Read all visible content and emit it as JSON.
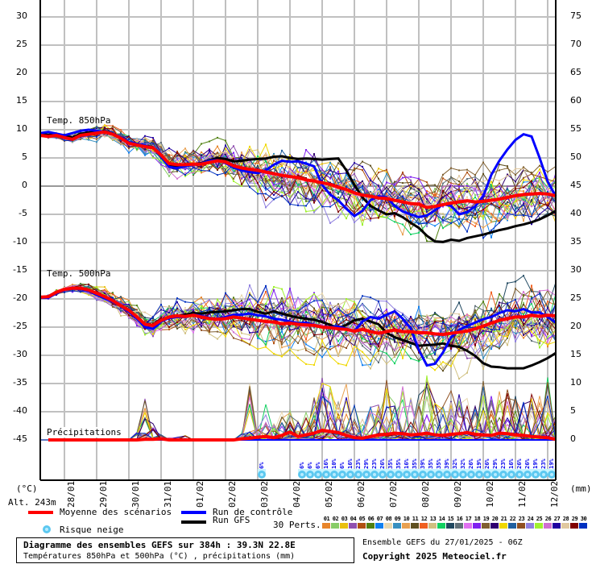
{
  "chart_data": {
    "type": "line",
    "title": "Diagramme des ensembles GEFS sur 384h : 39.3N 22.8E",
    "subtitle": "Températures 850hPa et 500hPa (°C) , précipitations (mm)",
    "run": "Ensemble GEFS du 27/01/2025 - 06Z",
    "altitude": "Alt. 243m",
    "left_axis": {
      "label": "(°C)",
      "ticks": [
        30,
        25,
        20,
        15,
        10,
        5,
        0,
        -5,
        -10,
        -15,
        -20,
        -25,
        -30,
        -35,
        -40,
        -45
      ],
      "range": [
        -45,
        30
      ]
    },
    "right_axis": {
      "label": "(mm)",
      "ticks": [
        75,
        70,
        65,
        60,
        55,
        50,
        45,
        40,
        35,
        30,
        25,
        20,
        15,
        10,
        5,
        0
      ],
      "range": [
        0,
        75
      ]
    },
    "x_dates": [
      "28/01",
      "29/01",
      "30/01",
      "31/01",
      "01/02",
      "02/02",
      "03/02",
      "04/02",
      "05/02",
      "06/02",
      "07/02",
      "08/02",
      "09/02",
      "10/02",
      "11/02",
      "12/02"
    ],
    "x_step_hours": 6,
    "horizon_hours": 384,
    "grid": true,
    "sections": [
      {
        "name": "Temp. 850hPa",
        "unit": "°C",
        "mean": [
          9,
          8.8,
          9,
          8.6,
          8.3,
          9,
          9.2,
          9.4,
          9.6,
          9.2,
          8.5,
          7.6,
          7.3,
          7,
          6.8,
          5.5,
          4,
          3.8,
          3.8,
          3.9,
          3.9,
          4.2,
          4.5,
          4.3,
          3.6,
          3.2,
          3,
          2.8,
          2.5,
          2.2,
          1.9,
          1.7,
          1.5,
          1.1,
          0.9,
          0.6,
          0.3,
          -0.2,
          -0.6,
          -1.2,
          -1.6,
          -1.8,
          -2.1,
          -2.2,
          -2.5,
          -2.8,
          -3.1,
          -3.2,
          -3.8,
          -3.6,
          -3.3,
          -3,
          -2.8,
          -2.6,
          -2.8,
          -2.7,
          -2.5,
          -2.3,
          -2,
          -1.7,
          -1.5,
          -1.4,
          -1.3,
          -1.4,
          -1.7
        ],
        "control": [
          9.4,
          9.6,
          9.3,
          9,
          9.4,
          9.8,
          10,
          9.8,
          9.6,
          9.3,
          8.7,
          7.8,
          7.5,
          7.2,
          6.8,
          5.2,
          3.4,
          3.2,
          3.5,
          3.8,
          4,
          4.5,
          4.6,
          4.1,
          3.3,
          2.8,
          2.5,
          2.3,
          2.8,
          3.8,
          4.5,
          4.3,
          4.4,
          4,
          3.5,
          0.2,
          -1.5,
          -2.5,
          -4,
          -5.3,
          -4.4,
          -2.5,
          -1.8,
          -2,
          -3.5,
          -4.5,
          -5,
          -5.5,
          -5.2,
          -4.3,
          -3.2,
          -3.5,
          -5,
          -4.6,
          -3.6,
          -1.8,
          2,
          4.5,
          6.5,
          8.2,
          9.2,
          8.8,
          5,
          0.8,
          -1.8
        ],
        "gfs": [
          9.2,
          9.1,
          9.2,
          8.9,
          8.6,
          9.3,
          9.5,
          9.6,
          9.7,
          9.3,
          8.6,
          7.7,
          7.3,
          7.2,
          6.9,
          5.4,
          3.8,
          3.5,
          3.8,
          3.9,
          4.1,
          4.6,
          5,
          4.8,
          4.4,
          4.5,
          4.7,
          4.8,
          4.9,
          5.2,
          5.3,
          5,
          4.8,
          4.9,
          4.8,
          4.7,
          4.8,
          4.9,
          2.8,
          0.2,
          -2,
          -3.5,
          -4.3,
          -5,
          -4.8,
          -5.5,
          -6.5,
          -7.4,
          -8.8,
          -9.8,
          -9.9,
          -9.5,
          -9.7,
          -9.2,
          -8.9,
          -8.6,
          -8.2,
          -7.8,
          -7.5,
          -7.1,
          -6.8,
          -6.4,
          -5.9,
          -5.2,
          -4.4
        ],
        "spread": 2.2
      },
      {
        "name": "Temp. 500hPa",
        "unit": "°C",
        "mean": [
          -19.7,
          -19.6,
          -18.8,
          -18.3,
          -18.1,
          -18.1,
          -18.4,
          -19,
          -19.6,
          -20.3,
          -21.2,
          -22,
          -23.2,
          -24.5,
          -24.7,
          -23.8,
          -23.2,
          -23,
          -23.1,
          -22.9,
          -23.2,
          -23.5,
          -23.6,
          -23.5,
          -23.2,
          -23.4,
          -23.6,
          -23.8,
          -24,
          -24.1,
          -24.4,
          -24.3,
          -24.5,
          -24.6,
          -24.7,
          -25,
          -25.1,
          -25.3,
          -25.4,
          -25.7,
          -25.4,
          -25.8,
          -26.1,
          -25.8,
          -25.5,
          -25.8,
          -25.8,
          -26,
          -26,
          -26.2,
          -26.3,
          -26.1,
          -25.9,
          -25.7,
          -25.3,
          -24.8,
          -24.3,
          -23.8,
          -23.5,
          -23.2,
          -23.2,
          -22.9,
          -23.1,
          -22.9,
          -23
        ],
        "control": [
          -19.8,
          -19.8,
          -19,
          -18.4,
          -18.2,
          -18.2,
          -18.6,
          -19.3,
          -19.9,
          -20.5,
          -21.3,
          -22.3,
          -23.5,
          -25,
          -25.3,
          -24,
          -23.4,
          -23.2,
          -23.2,
          -22.8,
          -23,
          -23.4,
          -23.5,
          -23.2,
          -22.8,
          -22.8,
          -22.6,
          -22.9,
          -23.1,
          -23.5,
          -23.7,
          -24,
          -24.3,
          -24.2,
          -24.6,
          -24.9,
          -25,
          -24.9,
          -25.3,
          -25.7,
          -24,
          -23.2,
          -23.5,
          -22.8,
          -22.2,
          -23.5,
          -25.2,
          -29,
          -31.8,
          -31.5,
          -29.5,
          -26.8,
          -25.5,
          -24.8,
          -24.2,
          -23.6,
          -23.2,
          -22.5,
          -22,
          -22.2,
          -21.8,
          -22.4,
          -22.4,
          -23.2,
          -24.2
        ],
        "gfs": [
          -19.7,
          -19.7,
          -18.9,
          -18.3,
          -18.1,
          -18.2,
          -18.5,
          -19.1,
          -19.7,
          -20.4,
          -21.2,
          -22.1,
          -23.2,
          -24.4,
          -24.6,
          -23.7,
          -23.2,
          -23,
          -22.8,
          -22.5,
          -22.6,
          -22.4,
          -22.3,
          -22.2,
          -22,
          -21.8,
          -21.8,
          -22.3,
          -22.6,
          -22.2,
          -22.6,
          -23,
          -23.3,
          -23.5,
          -23.7,
          -24.1,
          -24.6,
          -25.2,
          -24.6,
          -23.8,
          -23.5,
          -24,
          -24.5,
          -26,
          -26.8,
          -27.3,
          -27.8,
          -28.3,
          -28.2,
          -28.1,
          -27.9,
          -28.3,
          -28.5,
          -29.2,
          -30.1,
          -31.4,
          -32,
          -32.1,
          -32.3,
          -32.3,
          -32.3,
          -31.8,
          -31.2,
          -30.5,
          -29.6
        ],
        "spread": 2.6
      },
      {
        "name": "Précipitations",
        "unit": "mm",
        "baseline_c": -45,
        "mean_mm": [
          0,
          0,
          0,
          0,
          0,
          0,
          0,
          0,
          0,
          0,
          0,
          0,
          0,
          0.1,
          0.1,
          0.2,
          0,
          0,
          0,
          0,
          0,
          0,
          0,
          0,
          0,
          0.2,
          0.3,
          0.5,
          0.6,
          0.4,
          0.8,
          1.4,
          0.6,
          0.9,
          1.2,
          1.7,
          1.5,
          1.3,
          0.8,
          0.4,
          0.3,
          0.6,
          0.9,
          1,
          1.2,
          1.1,
          0.9,
          1,
          1.2,
          0.9,
          0.8,
          1,
          1.1,
          1.3,
          1,
          0.9,
          0.8,
          1.2,
          1.1,
          0.9,
          0.8,
          0.6,
          0.5,
          0.4,
          0.1
        ],
        "peaks_mm": [
          0,
          0,
          0,
          0,
          0,
          0,
          0,
          0,
          0,
          0,
          0,
          0,
          1.5,
          8,
          3,
          1,
          0.5,
          0.5,
          2,
          0,
          0,
          0,
          0,
          0,
          0,
          1.5,
          10,
          2,
          7,
          3,
          5,
          6,
          3.5,
          5,
          8,
          11,
          12,
          8,
          15,
          7,
          4,
          6,
          9,
          13,
          7,
          10,
          8,
          9,
          12,
          7,
          6,
          9,
          10,
          8,
          6,
          11,
          8,
          10,
          9,
          10,
          7,
          9,
          8,
          12,
          5
        ]
      }
    ],
    "legend": {
      "mean": {
        "label": "Moyenne des scénarios",
        "color": "#ff0000"
      },
      "control": {
        "label": "Run de contrôle",
        "color": "#0000ff"
      },
      "gfs": {
        "label": "Run GFS",
        "color": "#000000"
      },
      "snow": {
        "label": "Risque neige",
        "color": "#5cc8f0"
      },
      "perts_label": "30 Perts.",
      "perturbations": [
        {
          "id": "01",
          "color": "#e8852a"
        },
        {
          "id": "02",
          "color": "#88cc66"
        },
        {
          "id": "03",
          "color": "#e8c010"
        },
        {
          "id": "04",
          "color": "#9050b0"
        },
        {
          "id": "05",
          "color": "#b05010"
        },
        {
          "id": "06",
          "color": "#508010"
        },
        {
          "id": "07",
          "color": "#1080f0"
        },
        {
          "id": "08",
          "color": "#e8d8b0"
        },
        {
          "id": "09",
          "color": "#3890c0"
        },
        {
          "id": "10",
          "color": "#e8a050"
        },
        {
          "id": "11",
          "color": "#605020"
        },
        {
          "id": "12",
          "color": "#f06020"
        },
        {
          "id": "13",
          "color": "#d0c080"
        },
        {
          "id": "14",
          "color": "#10d060"
        },
        {
          "id": "15",
          "color": "#204860"
        },
        {
          "id": "16",
          "color": "#607078"
        },
        {
          "id": "17",
          "color": "#e070f0"
        },
        {
          "id": "18",
          "color": "#8020f0"
        },
        {
          "id": "19",
          "color": "#806030"
        },
        {
          "id": "20",
          "color": "#300070"
        },
        {
          "id": "21",
          "color": "#f0d800"
        },
        {
          "id": "22",
          "color": "#2060a0"
        },
        {
          "id": "23",
          "color": "#905020"
        },
        {
          "id": "24",
          "color": "#9080e0"
        },
        {
          "id": "25",
          "color": "#a0f030"
        },
        {
          "id": "26",
          "color": "#d070d0"
        },
        {
          "id": "27",
          "color": "#2000a0"
        },
        {
          "id": "28",
          "color": "#e0c8a0"
        },
        {
          "id": "29",
          "color": "#800000"
        },
        {
          "id": "30",
          "color": "#0030c0"
        }
      ]
    },
    "snow_risk": {
      "steps": [
        27,
        32,
        33,
        34,
        35,
        36,
        37,
        38,
        39,
        40,
        41,
        42,
        43,
        44,
        45,
        46,
        47,
        48,
        49,
        50,
        51,
        52,
        53,
        54,
        55,
        56,
        57,
        58,
        59,
        60,
        61,
        62,
        63
      ],
      "pct": [
        "6%",
        "6%",
        "6%",
        "6%",
        "16%",
        "10%",
        "6%",
        "16%",
        "23%",
        "29%",
        "23%",
        "26%",
        "35%",
        "35%",
        "16%",
        "35%",
        "39%",
        "35%",
        "35%",
        "39%",
        "32%",
        "32%",
        "26%",
        "19%",
        "26%",
        "29%",
        "23%",
        "16%",
        "26%",
        "26%",
        "19%",
        "23%",
        "19%"
      ]
    }
  },
  "labels": {
    "temp850": "Temp. 850hPa",
    "temp500": "Temp. 500hPa",
    "precip": "Précipitations",
    "unit_left": "(°C)",
    "unit_right": "(mm)",
    "altitude": "Alt. 243m",
    "legend_mean": "Moyenne des scénarios",
    "legend_control": "Run de contrôle",
    "legend_gfs": "Run GFS",
    "legend_snow": "Risque neige",
    "perts": "30 Perts.",
    "title_main": "Diagramme des ensembles GEFS sur 384h : 39.3N 22.8E",
    "title_sub": "Températures 850hPa et 500hPa (°C) , précipitations (mm)",
    "run_info": "Ensemble GEFS du 27/01/2025 - 06Z",
    "copyright": "Copyright 2025 Meteociel.fr"
  }
}
